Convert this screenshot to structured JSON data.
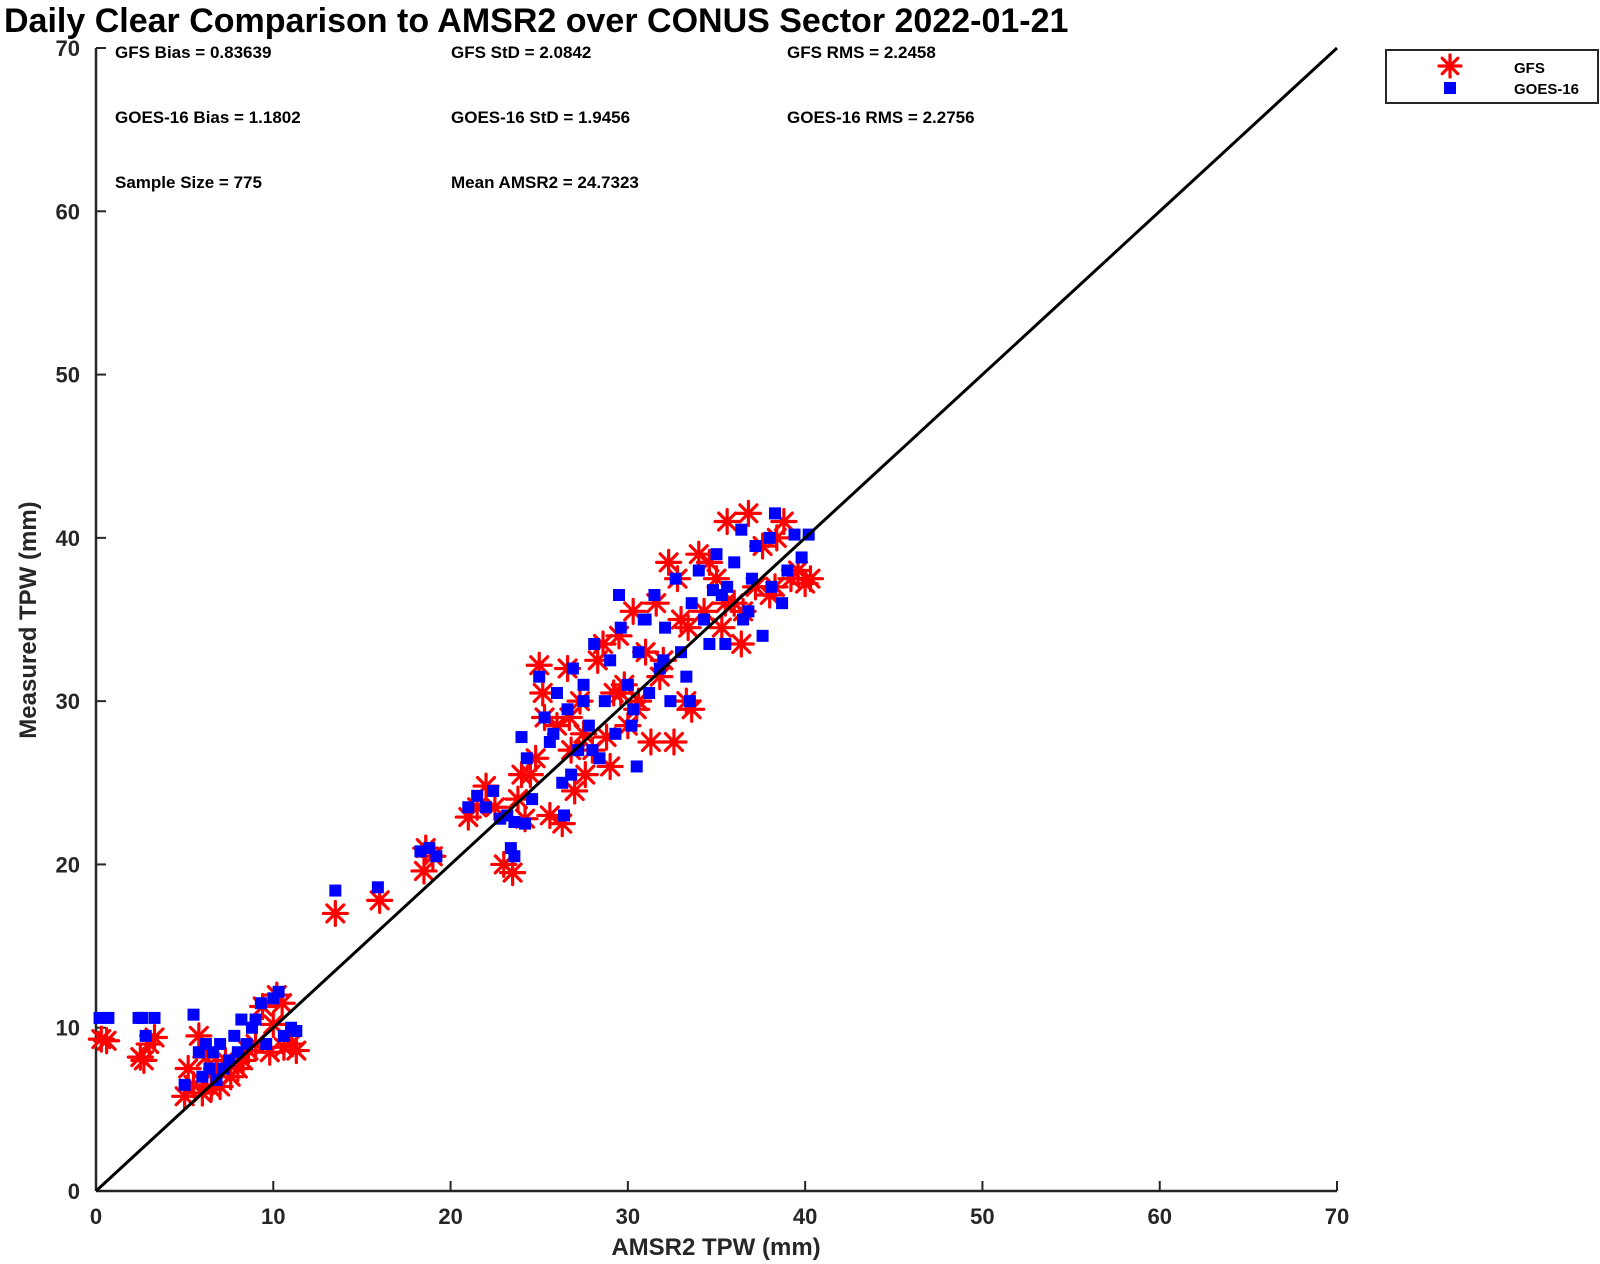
{
  "chart_data": {
    "type": "scatter",
    "title": "Daily Clear Comparison to AMSR2 over CONUS Sector 2022-01-21",
    "xlabel": "AMSR2 TPW (mm)",
    "ylabel": "Measured TPW (mm)",
    "xlim": [
      0,
      70
    ],
    "ylim": [
      0,
      70
    ],
    "xticks": [
      0,
      10,
      20,
      30,
      40,
      50,
      60,
      70
    ],
    "yticks": [
      0,
      10,
      20,
      30,
      40,
      50,
      60,
      70
    ],
    "grid": false,
    "legend_position": "outside-top-right",
    "reference_line": {
      "from": [
        0,
        0
      ],
      "to": [
        70,
        70
      ],
      "color": "#000000"
    },
    "stats": [
      "GFS Bias = 0.83639",
      "GFS StD = 2.0842",
      "GFS RMS = 2.2458",
      "GOES-16 Bias = 1.1802",
      "GOES-16 StD = 1.9456",
      "GOES-16 RMS = 2.2756",
      "Sample Size = 775",
      "Mean AMSR2 = 24.7323"
    ],
    "series": [
      {
        "name": "GFS",
        "marker": "asterisk",
        "color": "#ff0000",
        "x": [
          0.3,
          0.6,
          2.5,
          2.7,
          3.0,
          3.3,
          5.0,
          5.2,
          5.5,
          5.8,
          6.0,
          6.2,
          6.5,
          6.8,
          7.0,
          7.3,
          7.6,
          8.0,
          8.3,
          8.6,
          9.0,
          9.4,
          9.8,
          10.2,
          10.6,
          11.0,
          11.3,
          10.0,
          10.5,
          13.5,
          16.0,
          18.5,
          19.0,
          18.6,
          21.0,
          21.5,
          22.0,
          22.5,
          23.0,
          23.5,
          23.8,
          24.2,
          24.5,
          24.8,
          25.0,
          25.3,
          25.6,
          26.0,
          26.3,
          26.6,
          26.8,
          27.0,
          27.3,
          27.6,
          28.0,
          28.3,
          28.6,
          29.0,
          29.2,
          29.5,
          29.8,
          30.0,
          30.3,
          30.6,
          31.0,
          31.3,
          31.6,
          32.0,
          32.3,
          32.6,
          33.0,
          33.3,
          33.6,
          34.0,
          34.3,
          34.6,
          35.0,
          35.3,
          35.6,
          36.0,
          36.4,
          36.8,
          37.2,
          37.6,
          38.0,
          38.4,
          38.8,
          39.2,
          39.6,
          40.0,
          40.3,
          30.5,
          31.8,
          32.8,
          33.4,
          27.5,
          28.8,
          29.6,
          35.5,
          36.5,
          38.3,
          25.2,
          26.7,
          24.0
        ],
        "y": [
          9.3,
          9.2,
          8.2,
          8.0,
          9.0,
          9.4,
          5.8,
          7.5,
          6.5,
          9.5,
          6.0,
          8.2,
          6.3,
          7.5,
          6.4,
          8.0,
          7.0,
          7.5,
          8.0,
          8.6,
          9.0,
          11.3,
          8.5,
          12.0,
          8.8,
          9.0,
          8.6,
          10.2,
          11.5,
          17.0,
          17.8,
          19.6,
          20.5,
          21.0,
          22.9,
          23.5,
          24.8,
          23.5,
          20.0,
          19.5,
          24.0,
          22.8,
          25.5,
          26.5,
          32.2,
          29.0,
          23.0,
          28.5,
          22.5,
          32.0,
          27.0,
          24.5,
          30.0,
          25.5,
          27.0,
          32.5,
          33.5,
          26.0,
          30.5,
          34.0,
          31.0,
          28.5,
          35.5,
          30.0,
          33.0,
          27.5,
          36.0,
          32.5,
          38.5,
          27.5,
          35.0,
          30.0,
          29.5,
          39.0,
          35.5,
          38.5,
          37.5,
          34.5,
          41.0,
          36.0,
          33.5,
          41.5,
          37.0,
          39.5,
          36.5,
          40.0,
          41.0,
          37.5,
          38.0,
          37.2,
          37.5,
          29.5,
          31.5,
          37.5,
          34.5,
          28.0,
          27.8,
          30.5,
          36.0,
          35.5,
          37.0,
          30.5,
          29.0,
          25.5
        ]
      },
      {
        "name": "GOES-16",
        "marker": "square",
        "color": "#0000ff",
        "x": [
          0.2,
          0.7,
          2.4,
          2.8,
          3.3,
          2.6,
          5.0,
          5.5,
          5.8,
          6.0,
          6.2,
          6.4,
          6.6,
          6.8,
          7.0,
          7.2,
          7.5,
          7.8,
          8.0,
          8.2,
          8.5,
          8.8,
          9.0,
          9.3,
          9.6,
          10.0,
          10.3,
          10.6,
          11.0,
          11.3,
          13.5,
          15.9,
          18.3,
          18.8,
          19.2,
          21.0,
          21.5,
          22.0,
          22.4,
          22.8,
          23.2,
          23.6,
          24.0,
          24.3,
          24.6,
          25.0,
          25.3,
          25.6,
          26.0,
          26.3,
          26.6,
          26.9,
          27.2,
          27.5,
          27.8,
          28.1,
          28.4,
          28.7,
          29.0,
          29.3,
          29.6,
          30.0,
          30.3,
          30.6,
          30.9,
          31.2,
          31.5,
          31.8,
          32.1,
          32.4,
          32.7,
          33.0,
          33.3,
          33.6,
          34.0,
          34.3,
          34.6,
          35.0,
          35.3,
          35.6,
          36.0,
          36.4,
          36.8,
          37.2,
          37.6,
          38.0,
          38.3,
          38.7,
          39.0,
          39.4,
          39.8,
          40.2,
          38.1,
          36.5,
          35.5,
          37.0,
          33.5,
          30.2,
          28.0,
          26.8,
          32.0,
          31.0,
          29.5,
          27.5,
          34.8,
          25.8,
          23.4,
          24.2,
          26.4,
          23.6,
          30.5
        ],
        "y": [
          10.6,
          10.6,
          10.6,
          9.5,
          10.6,
          10.6,
          6.5,
          10.8,
          8.5,
          7.0,
          9.0,
          7.5,
          8.5,
          6.8,
          9.0,
          7.5,
          8.0,
          9.5,
          8.5,
          10.5,
          9.0,
          10.0,
          10.5,
          11.5,
          9.0,
          11.8,
          12.2,
          9.5,
          10.0,
          9.8,
          18.4,
          18.6,
          20.8,
          21.0,
          20.5,
          23.5,
          24.2,
          23.5,
          24.5,
          22.8,
          23.0,
          22.6,
          27.8,
          26.5,
          24.0,
          31.5,
          29.0,
          27.5,
          30.5,
          25.0,
          29.5,
          32.0,
          27.0,
          31.0,
          28.5,
          33.5,
          26.5,
          30.0,
          32.5,
          28.0,
          34.5,
          31.0,
          29.5,
          33.0,
          35.0,
          30.5,
          36.5,
          32.0,
          34.5,
          30.0,
          37.5,
          33.0,
          31.5,
          36.0,
          38.0,
          35.0,
          33.5,
          39.0,
          36.5,
          37.0,
          38.5,
          40.5,
          35.5,
          39.5,
          34.0,
          40.0,
          41.5,
          36.0,
          38.0,
          40.2,
          38.8,
          40.2,
          37.0,
          35.0,
          33.5,
          37.5,
          30.0,
          28.5,
          27.0,
          25.5,
          32.5,
          35.0,
          36.5,
          30.0,
          36.8,
          28.0,
          21.0,
          22.5,
          23.0,
          20.5,
          26.0
        ]
      }
    ]
  }
}
